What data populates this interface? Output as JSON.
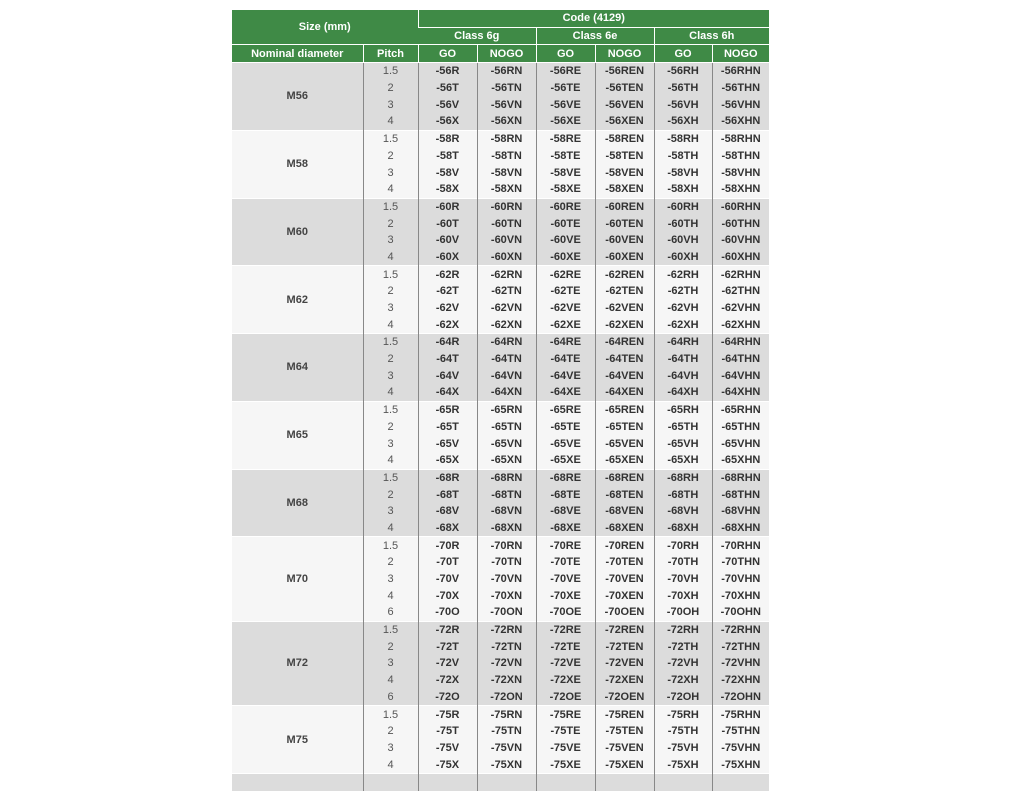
{
  "header": {
    "size": "Size (mm)",
    "code": "Code (4129)",
    "classes": [
      "Class 6g",
      "Class 6e",
      "Class 6h"
    ],
    "nominal": "Nominal diameter",
    "pitch": "Pitch",
    "go": "GO",
    "nogo": "NOGO"
  },
  "colors": {
    "header_green": "#3f8a46",
    "row_dark": "#dcdcdc",
    "row_light": "#f6f6f6"
  },
  "groups": [
    {
      "diameter": "M56",
      "rows": [
        [
          "1.5",
          "-56R",
          "-56RN",
          "-56RE",
          "-56REN",
          "-56RH",
          "-56RHN"
        ],
        [
          "2",
          "-56T",
          "-56TN",
          "-56TE",
          "-56TEN",
          "-56TH",
          "-56THN"
        ],
        [
          "3",
          "-56V",
          "-56VN",
          "-56VE",
          "-56VEN",
          "-56VH",
          "-56VHN"
        ],
        [
          "4",
          "-56X",
          "-56XN",
          "-56XE",
          "-56XEN",
          "-56XH",
          "-56XHN"
        ]
      ]
    },
    {
      "diameter": "M58",
      "rows": [
        [
          "1.5",
          "-58R",
          "-58RN",
          "-58RE",
          "-58REN",
          "-58RH",
          "-58RHN"
        ],
        [
          "2",
          "-58T",
          "-58TN",
          "-58TE",
          "-58TEN",
          "-58TH",
          "-58THN"
        ],
        [
          "3",
          "-58V",
          "-58VN",
          "-58VE",
          "-58VEN",
          "-58VH",
          "-58VHN"
        ],
        [
          "4",
          "-58X",
          "-58XN",
          "-58XE",
          "-58XEN",
          "-58XH",
          "-58XHN"
        ]
      ]
    },
    {
      "diameter": "M60",
      "rows": [
        [
          "1.5",
          "-60R",
          "-60RN",
          "-60RE",
          "-60REN",
          "-60RH",
          "-60RHN"
        ],
        [
          "2",
          "-60T",
          "-60TN",
          "-60TE",
          "-60TEN",
          "-60TH",
          "-60THN"
        ],
        [
          "3",
          "-60V",
          "-60VN",
          "-60VE",
          "-60VEN",
          "-60VH",
          "-60VHN"
        ],
        [
          "4",
          "-60X",
          "-60XN",
          "-60XE",
          "-60XEN",
          "-60XH",
          "-60XHN"
        ]
      ]
    },
    {
      "diameter": "M62",
      "rows": [
        [
          "1.5",
          "-62R",
          "-62RN",
          "-62RE",
          "-62REN",
          "-62RH",
          "-62RHN"
        ],
        [
          "2",
          "-62T",
          "-62TN",
          "-62TE",
          "-62TEN",
          "-62TH",
          "-62THN"
        ],
        [
          "3",
          "-62V",
          "-62VN",
          "-62VE",
          "-62VEN",
          "-62VH",
          "-62VHN"
        ],
        [
          "4",
          "-62X",
          "-62XN",
          "-62XE",
          "-62XEN",
          "-62XH",
          "-62XHN"
        ]
      ]
    },
    {
      "diameter": "M64",
      "rows": [
        [
          "1.5",
          "-64R",
          "-64RN",
          "-64RE",
          "-64REN",
          "-64RH",
          "-64RHN"
        ],
        [
          "2",
          "-64T",
          "-64TN",
          "-64TE",
          "-64TEN",
          "-64TH",
          "-64THN"
        ],
        [
          "3",
          "-64V",
          "-64VN",
          "-64VE",
          "-64VEN",
          "-64VH",
          "-64VHN"
        ],
        [
          "4",
          "-64X",
          "-64XN",
          "-64XE",
          "-64XEN",
          "-64XH",
          "-64XHN"
        ]
      ]
    },
    {
      "diameter": "M65",
      "rows": [
        [
          "1.5",
          "-65R",
          "-65RN",
          "-65RE",
          "-65REN",
          "-65RH",
          "-65RHN"
        ],
        [
          "2",
          "-65T",
          "-65TN",
          "-65TE",
          "-65TEN",
          "-65TH",
          "-65THN"
        ],
        [
          "3",
          "-65V",
          "-65VN",
          "-65VE",
          "-65VEN",
          "-65VH",
          "-65VHN"
        ],
        [
          "4",
          "-65X",
          "-65XN",
          "-65XE",
          "-65XEN",
          "-65XH",
          "-65XHN"
        ]
      ]
    },
    {
      "diameter": "M68",
      "rows": [
        [
          "1.5",
          "-68R",
          "-68RN",
          "-68RE",
          "-68REN",
          "-68RH",
          "-68RHN"
        ],
        [
          "2",
          "-68T",
          "-68TN",
          "-68TE",
          "-68TEN",
          "-68TH",
          "-68THN"
        ],
        [
          "3",
          "-68V",
          "-68VN",
          "-68VE",
          "-68VEN",
          "-68VH",
          "-68VHN"
        ],
        [
          "4",
          "-68X",
          "-68XN",
          "-68XE",
          "-68XEN",
          "-68XH",
          "-68XHN"
        ]
      ]
    },
    {
      "diameter": "M70",
      "rows": [
        [
          "1.5",
          "-70R",
          "-70RN",
          "-70RE",
          "-70REN",
          "-70RH",
          "-70RHN"
        ],
        [
          "2",
          "-70T",
          "-70TN",
          "-70TE",
          "-70TEN",
          "-70TH",
          "-70THN"
        ],
        [
          "3",
          "-70V",
          "-70VN",
          "-70VE",
          "-70VEN",
          "-70VH",
          "-70VHN"
        ],
        [
          "4",
          "-70X",
          "-70XN",
          "-70XE",
          "-70XEN",
          "-70XH",
          "-70XHN"
        ],
        [
          "6",
          "-70O",
          "-70ON",
          "-70OE",
          "-70OEN",
          "-70OH",
          "-70OHN"
        ]
      ]
    },
    {
      "diameter": "M72",
      "rows": [
        [
          "1.5",
          "-72R",
          "-72RN",
          "-72RE",
          "-72REN",
          "-72RH",
          "-72RHN"
        ],
        [
          "2",
          "-72T",
          "-72TN",
          "-72TE",
          "-72TEN",
          "-72TH",
          "-72THN"
        ],
        [
          "3",
          "-72V",
          "-72VN",
          "-72VE",
          "-72VEN",
          "-72VH",
          "-72VHN"
        ],
        [
          "4",
          "-72X",
          "-72XN",
          "-72XE",
          "-72XEN",
          "-72XH",
          "-72XHN"
        ],
        [
          "6",
          "-72O",
          "-72ON",
          "-72OE",
          "-72OEN",
          "-72OH",
          "-72OHN"
        ]
      ]
    },
    {
      "diameter": "M75",
      "rows": [
        [
          "1.5",
          "-75R",
          "-75RN",
          "-75RE",
          "-75REN",
          "-75RH",
          "-75RHN"
        ],
        [
          "2",
          "-75T",
          "-75TN",
          "-75TE",
          "-75TEN",
          "-75TH",
          "-75THN"
        ],
        [
          "3",
          "-75V",
          "-75VN",
          "-75VE",
          "-75VEN",
          "-75VH",
          "-75VHN"
        ],
        [
          "4",
          "-75X",
          "-75XN",
          "-75XE",
          "-75XEN",
          "-75XH",
          "-75XHN"
        ]
      ]
    }
  ]
}
